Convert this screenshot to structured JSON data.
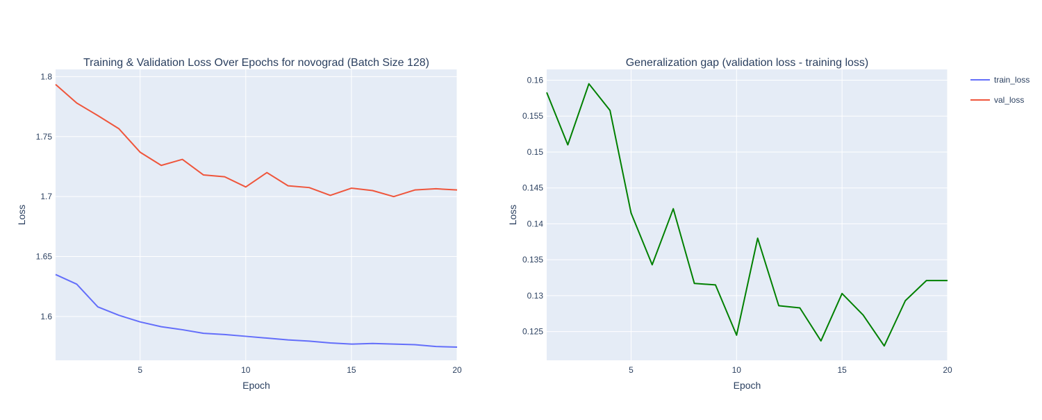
{
  "chart_data": [
    {
      "type": "line",
      "title": "Training & Validation Loss Over Epochs for novograd (Batch Size 128)",
      "xlabel": "Epoch",
      "ylabel": "Loss",
      "xlim": [
        1,
        20
      ],
      "ylim": [
        1.5635,
        1.806
      ],
      "xticks": [
        5,
        10,
        15,
        20
      ],
      "yticks": [
        1.6,
        1.65,
        1.7,
        1.75,
        1.8
      ],
      "ytick_labels": [
        "1.6",
        "1.65",
        "1.7",
        "1.75",
        "1.8"
      ],
      "grid": true,
      "x": [
        1,
        2,
        3,
        4,
        5,
        6,
        7,
        8,
        9,
        10,
        11,
        12,
        13,
        14,
        15,
        16,
        17,
        18,
        19,
        20
      ],
      "series": [
        {
          "name": "train_loss",
          "color": "#636efa",
          "values": [
            1.635,
            1.627,
            1.608,
            1.601,
            1.5955,
            1.5915,
            1.589,
            1.586,
            1.585,
            1.5835,
            1.582,
            1.5805,
            1.5795,
            1.578,
            1.577,
            1.5775,
            1.577,
            1.5765,
            1.575,
            1.5745
          ]
        },
        {
          "name": "val_loss",
          "color": "#ef553b",
          "values": [
            1.7935,
            1.778,
            1.7675,
            1.7565,
            1.737,
            1.726,
            1.731,
            1.718,
            1.7165,
            1.708,
            1.72,
            1.709,
            1.7075,
            1.701,
            1.707,
            1.705,
            1.7,
            1.7055,
            1.7065,
            1.7055
          ]
        }
      ]
    },
    {
      "type": "line",
      "title": "Generalization gap (validation loss - training loss)",
      "xlabel": "Epoch",
      "ylabel": "Loss",
      "xlim": [
        1,
        20
      ],
      "ylim": [
        0.121,
        0.1615
      ],
      "xticks": [
        5,
        10,
        15,
        20
      ],
      "yticks": [
        0.125,
        0.13,
        0.135,
        0.14,
        0.145,
        0.15,
        0.155,
        0.16
      ],
      "ytick_labels": [
        "0.125",
        "0.13",
        "0.135",
        "0.14",
        "0.145",
        "0.15",
        "0.155",
        "0.16"
      ],
      "grid": true,
      "x": [
        1,
        2,
        3,
        4,
        5,
        6,
        7,
        8,
        9,
        10,
        11,
        12,
        13,
        14,
        15,
        16,
        17,
        18,
        19,
        20
      ],
      "series": [
        {
          "color": "#008000",
          "values": [
            0.1583,
            0.151,
            0.1595,
            0.1558,
            0.1415,
            0.1343,
            0.1421,
            0.1317,
            0.1315,
            0.1245,
            0.138,
            0.1286,
            0.1283,
            0.1237,
            0.1303,
            0.1273,
            0.123,
            0.1293,
            0.1321,
            0.1321
          ]
        }
      ]
    }
  ],
  "legend": {
    "position": "top-right",
    "items": [
      {
        "label": "train_loss",
        "color": "#636efa"
      },
      {
        "label": "val_loss",
        "color": "#ef553b"
      }
    ]
  }
}
